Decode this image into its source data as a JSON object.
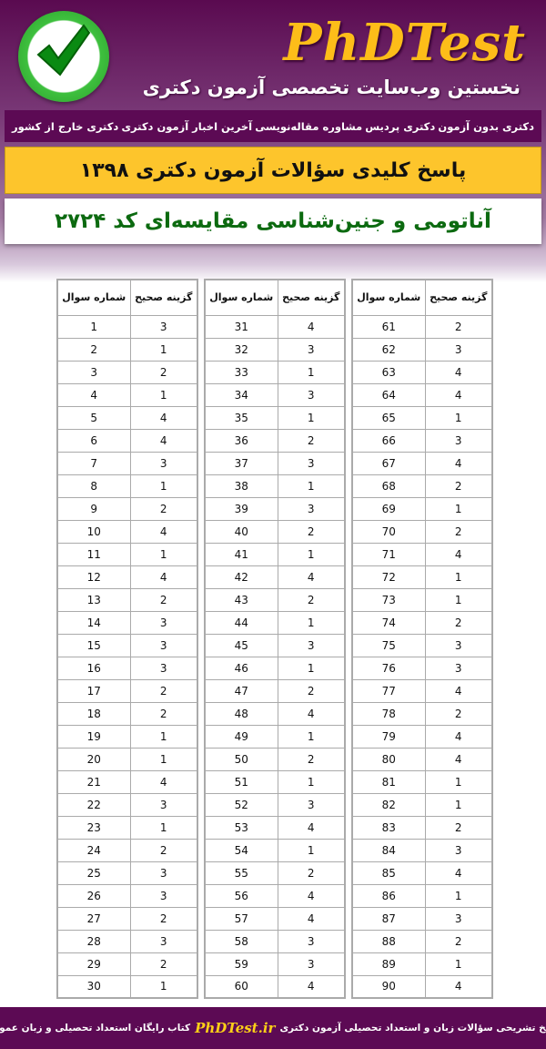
{
  "header": {
    "brand": "PhDTest",
    "tagline": "نخستین وب‌سایت تخصصی آزمون دکتری",
    "logo_icon": "checkmark-circle-icon"
  },
  "nav": [
    "دکتری بدون آزمون",
    "دکتری پردیس",
    "مشاوره مقاله‌نویسی",
    "آخرین اخبار آزمون دکتری",
    "دکتری خارج از کشور"
  ],
  "banner": "پاسخ کلیدی سؤالات آزمون دکتری ۱۳۹۸",
  "subtitle": "آناتومی و جنین‌شناسی مقایسه‌ای کد ۲۷۲۴",
  "table": {
    "headers": {
      "number": "شماره سوال",
      "answer": "گزینه صحیح"
    },
    "answers": [
      3,
      1,
      2,
      1,
      4,
      4,
      3,
      1,
      2,
      4,
      1,
      4,
      2,
      3,
      3,
      3,
      2,
      2,
      1,
      1,
      4,
      3,
      1,
      2,
      3,
      3,
      2,
      3,
      2,
      1,
      4,
      3,
      1,
      3,
      1,
      2,
      3,
      1,
      3,
      2,
      1,
      4,
      2,
      1,
      3,
      1,
      2,
      4,
      1,
      2,
      1,
      3,
      4,
      1,
      2,
      4,
      4,
      3,
      3,
      4,
      2,
      3,
      4,
      4,
      1,
      3,
      4,
      2,
      1,
      2,
      4,
      1,
      1,
      2,
      3,
      3,
      4,
      2,
      4,
      4,
      1,
      1,
      2,
      3,
      4,
      1,
      3,
      2,
      1,
      4
    ]
  },
  "footer": {
    "before": "پاسخ تشریحی سؤالات زبان و استعداد تحصیلی آزمون دکتری",
    "site": "PhDTest.ir",
    "after": "کتاب رایگان استعداد تحصیلی و زبان عمومی"
  },
  "colors": {
    "purple": "#5c0a54",
    "yellow": "#fdc52c",
    "green": "#0c6a10"
  }
}
